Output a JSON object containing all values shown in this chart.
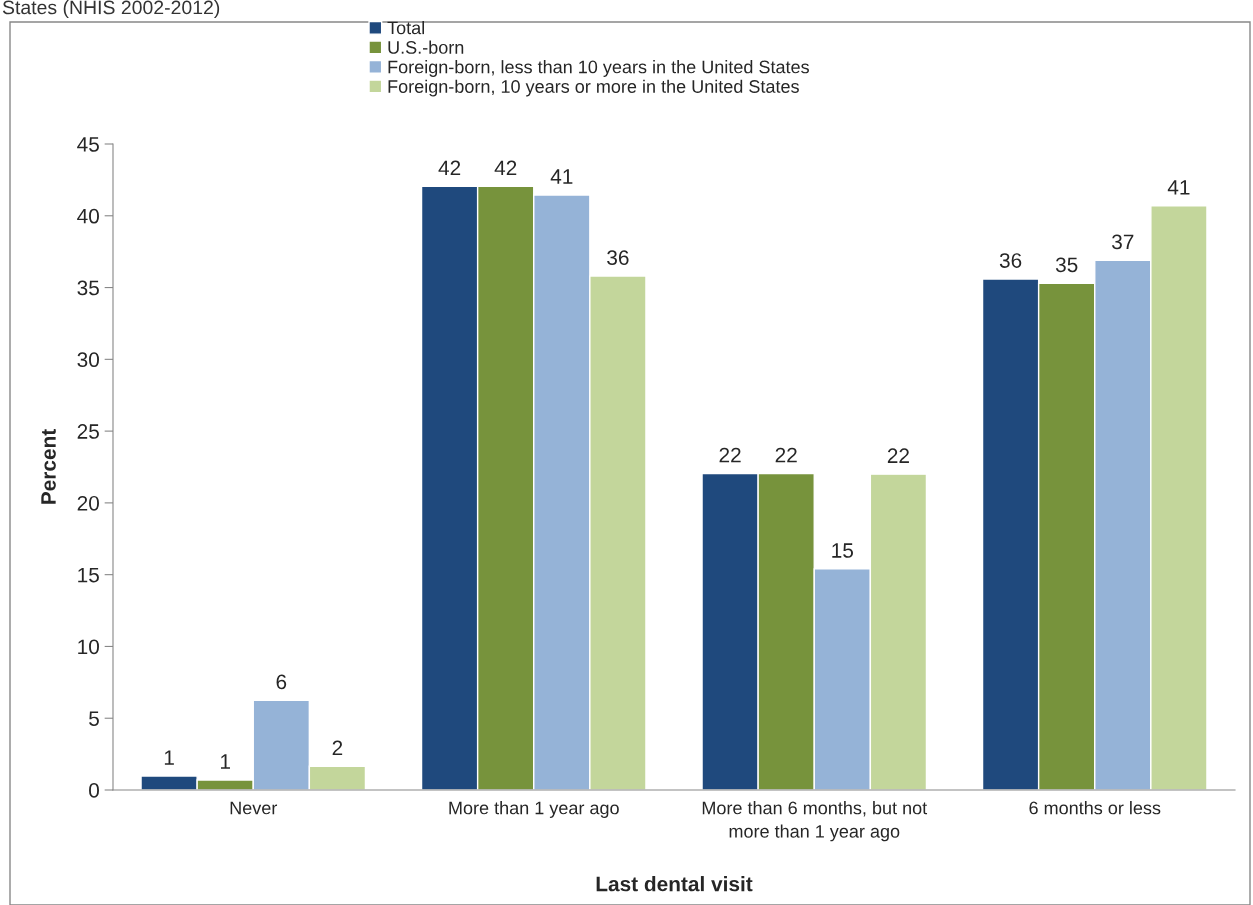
{
  "chart_data": {
    "type": "bar",
    "title": "States (NHIS 2002-2012)",
    "xlabel": "Last dental visit",
    "ylabel": "Percent",
    "categories": [
      "Never",
      "More than 1 year ago",
      "More than 6 months, but not\nmore than 1 year ago",
      "6 months or less"
    ],
    "series": [
      {
        "name": "Total",
        "color": "#1f497d",
        "values": [
          0.97,
          42.05,
          22.05,
          35.6
        ],
        "value_labels": [
          "1",
          "42",
          "22",
          "36"
        ]
      },
      {
        "name": "U.S.-born",
        "color": "#77933c",
        "values": [
          0.7,
          42.05,
          22.05,
          35.3
        ],
        "value_labels": [
          "1",
          "42",
          "22",
          "35"
        ]
      },
      {
        "name": "Foreign-born, less than 10 years in the United States",
        "color": "#95b3d7",
        "values": [
          6.25,
          41.45,
          15.4,
          36.9
        ],
        "value_labels": [
          "6",
          "41",
          "15",
          "37"
        ]
      },
      {
        "name": "Foreign-born, 10 years or more in the United States",
        "color": "#c3d69b",
        "values": [
          1.65,
          35.8,
          22.0,
          40.7
        ],
        "value_labels": [
          "2",
          "36",
          "22",
          "41"
        ]
      }
    ],
    "ylim": [
      0,
      45
    ],
    "yticks": [
      0,
      5,
      10,
      15,
      20,
      25,
      30,
      35,
      40,
      45
    ],
    "grid": false,
    "legend": "top"
  }
}
